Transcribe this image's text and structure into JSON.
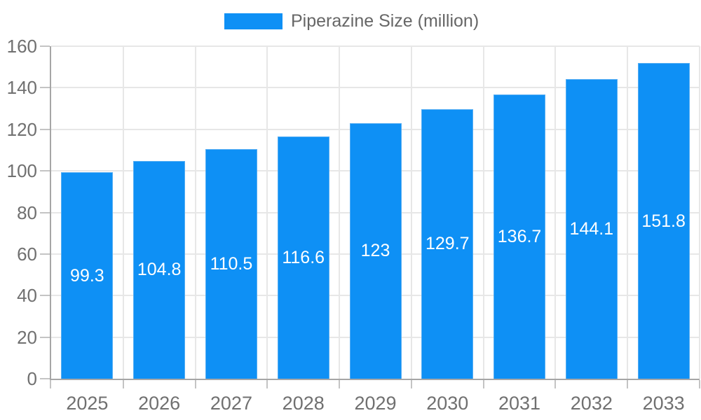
{
  "legend": {
    "label": "Piperazine Size (million)"
  },
  "chart_data": {
    "type": "bar",
    "title": "",
    "categories": [
      "2025",
      "2026",
      "2027",
      "2028",
      "2029",
      "2030",
      "2031",
      "2032",
      "2033"
    ],
    "series": [
      {
        "name": "Piperazine Size (million)",
        "values": [
          99.3,
          104.8,
          110.5,
          116.6,
          123,
          129.7,
          136.7,
          144.1,
          151.8
        ]
      }
    ],
    "xlabel": "",
    "ylabel": "",
    "ylim": [
      0,
      160
    ],
    "ytick_step": 20,
    "yticks": [
      0,
      20,
      40,
      60,
      80,
      100,
      120,
      140,
      160
    ],
    "grid": true,
    "legend_position": "top-center",
    "value_labels": "inside-center",
    "colors": {
      "bar": "#0e90f5",
      "bar_border": "#57aef3",
      "grid": "#e7e7e7",
      "axis": "#a6a6a6",
      "tick": "#c4c4c4",
      "axis_label": "#707070",
      "value_label": "#ffffff",
      "legend_text": "#666666"
    }
  }
}
